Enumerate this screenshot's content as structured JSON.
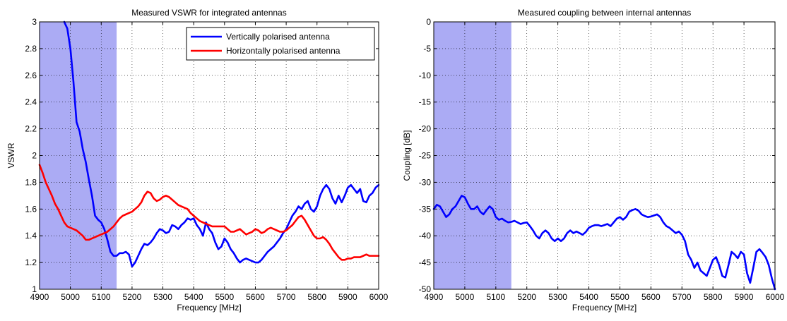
{
  "chart_data": [
    {
      "type": "line",
      "title": "Measured VSWR for integrated antennas",
      "xlabel": "Frequency [MHz]",
      "ylabel": "VSWR",
      "xlim": [
        4900,
        6000
      ],
      "ylim": [
        1,
        3
      ],
      "xticks": [
        4900,
        5000,
        5100,
        5200,
        5300,
        5400,
        5500,
        5600,
        5700,
        5800,
        5900,
        6000
      ],
      "yticks": [
        1,
        1.2,
        1.4,
        1.6,
        1.8,
        2,
        2.2,
        2.4,
        2.6,
        2.8,
        3
      ],
      "ytick_labels": [
        "1",
        "1.2",
        "1.4",
        "1.6",
        "1.8",
        "2",
        "2.2",
        "2.4",
        "2.6",
        "2.8",
        "3"
      ],
      "grid": true,
      "legend_position": "top-right",
      "shaded_band": {
        "x": [
          4900,
          5150
        ],
        "color": "#8f8ff0"
      },
      "series": [
        {
          "name": "Vertically polarised antenna",
          "color": "#0000ff",
          "x": [
            4980,
            4990,
            5000,
            5010,
            5020,
            5030,
            5040,
            5050,
            5060,
            5070,
            5080,
            5090,
            5100,
            5110,
            5120,
            5130,
            5140,
            5150,
            5160,
            5170,
            5180,
            5190,
            5200,
            5210,
            5220,
            5230,
            5240,
            5250,
            5260,
            5270,
            5280,
            5290,
            5300,
            5310,
            5320,
            5330,
            5340,
            5350,
            5360,
            5370,
            5380,
            5390,
            5400,
            5410,
            5420,
            5430,
            5440,
            5450,
            5460,
            5470,
            5480,
            5490,
            5500,
            5510,
            5520,
            5530,
            5540,
            5550,
            5560,
            5570,
            5580,
            5590,
            5600,
            5610,
            5620,
            5630,
            5640,
            5650,
            5660,
            5670,
            5680,
            5690,
            5700,
            5710,
            5720,
            5730,
            5740,
            5750,
            5760,
            5770,
            5780,
            5790,
            5800,
            5810,
            5820,
            5830,
            5840,
            5850,
            5860,
            5870,
            5880,
            5890,
            5900,
            5910,
            5920,
            5930,
            5940,
            5950,
            5960,
            5970,
            5980,
            5990,
            6000
          ],
          "values": [
            3.0,
            2.95,
            2.8,
            2.55,
            2.25,
            2.18,
            2.05,
            1.95,
            1.82,
            1.7,
            1.55,
            1.52,
            1.5,
            1.45,
            1.37,
            1.28,
            1.25,
            1.25,
            1.27,
            1.27,
            1.28,
            1.26,
            1.17,
            1.2,
            1.25,
            1.3,
            1.34,
            1.33,
            1.35,
            1.38,
            1.42,
            1.45,
            1.44,
            1.42,
            1.43,
            1.48,
            1.47,
            1.45,
            1.48,
            1.5,
            1.53,
            1.52,
            1.53,
            1.48,
            1.45,
            1.4,
            1.5,
            1.45,
            1.42,
            1.35,
            1.3,
            1.32,
            1.38,
            1.35,
            1.3,
            1.27,
            1.23,
            1.2,
            1.22,
            1.23,
            1.22,
            1.21,
            1.2,
            1.2,
            1.22,
            1.25,
            1.28,
            1.3,
            1.32,
            1.35,
            1.38,
            1.42,
            1.45,
            1.5,
            1.55,
            1.58,
            1.62,
            1.6,
            1.64,
            1.66,
            1.6,
            1.58,
            1.62,
            1.7,
            1.75,
            1.78,
            1.75,
            1.68,
            1.64,
            1.7,
            1.65,
            1.7,
            1.76,
            1.78,
            1.75,
            1.72,
            1.75,
            1.66,
            1.65,
            1.7,
            1.72,
            1.76,
            1.78
          ]
        },
        {
          "name": "Horizontally polarised antenna",
          "color": "#ff0000",
          "x": [
            4900,
            4910,
            4920,
            4930,
            4940,
            4950,
            4960,
            4970,
            4980,
            4990,
            5000,
            5010,
            5020,
            5030,
            5040,
            5050,
            5060,
            5070,
            5080,
            5090,
            5100,
            5110,
            5120,
            5130,
            5140,
            5150,
            5160,
            5170,
            5180,
            5190,
            5200,
            5210,
            5220,
            5230,
            5240,
            5250,
            5260,
            5270,
            5280,
            5290,
            5300,
            5310,
            5320,
            5330,
            5340,
            5350,
            5360,
            5370,
            5380,
            5390,
            5400,
            5410,
            5420,
            5430,
            5440,
            5450,
            5460,
            5470,
            5480,
            5490,
            5500,
            5510,
            5520,
            5530,
            5540,
            5550,
            5560,
            5570,
            5580,
            5590,
            5600,
            5610,
            5620,
            5630,
            5640,
            5650,
            5660,
            5670,
            5680,
            5690,
            5700,
            5710,
            5720,
            5730,
            5740,
            5750,
            5760,
            5770,
            5780,
            5790,
            5800,
            5810,
            5820,
            5830,
            5840,
            5850,
            5860,
            5870,
            5880,
            5890,
            5900,
            5910,
            5920,
            5930,
            5940,
            5950,
            5960,
            5970,
            5980,
            5990,
            6000
          ],
          "values": [
            1.93,
            1.87,
            1.8,
            1.75,
            1.7,
            1.64,
            1.6,
            1.55,
            1.5,
            1.47,
            1.46,
            1.45,
            1.44,
            1.42,
            1.4,
            1.37,
            1.37,
            1.38,
            1.39,
            1.4,
            1.41,
            1.42,
            1.43,
            1.45,
            1.47,
            1.5,
            1.53,
            1.55,
            1.56,
            1.57,
            1.58,
            1.6,
            1.62,
            1.65,
            1.7,
            1.73,
            1.72,
            1.68,
            1.66,
            1.67,
            1.69,
            1.7,
            1.69,
            1.67,
            1.65,
            1.63,
            1.62,
            1.61,
            1.6,
            1.57,
            1.55,
            1.53,
            1.51,
            1.5,
            1.49,
            1.48,
            1.47,
            1.47,
            1.47,
            1.47,
            1.47,
            1.45,
            1.43,
            1.43,
            1.44,
            1.45,
            1.43,
            1.41,
            1.42,
            1.43,
            1.45,
            1.44,
            1.42,
            1.43,
            1.45,
            1.46,
            1.45,
            1.44,
            1.43,
            1.43,
            1.44,
            1.46,
            1.48,
            1.51,
            1.54,
            1.55,
            1.52,
            1.48,
            1.44,
            1.4,
            1.38,
            1.38,
            1.39,
            1.37,
            1.34,
            1.3,
            1.27,
            1.24,
            1.22,
            1.22,
            1.23,
            1.23,
            1.24,
            1.24,
            1.24,
            1.25,
            1.26,
            1.25,
            1.25,
            1.25,
            1.25
          ]
        }
      ]
    },
    {
      "type": "line",
      "title": "Measured coupling between internal antennas",
      "xlabel": "Frequency [MHz]",
      "ylabel": "Coupling [dB]",
      "xlim": [
        4900,
        6000
      ],
      "ylim": [
        -50,
        0
      ],
      "xticks": [
        4900,
        5000,
        5100,
        5200,
        5300,
        5400,
        5500,
        5600,
        5700,
        5800,
        5900,
        6000
      ],
      "yticks": [
        -50,
        -45,
        -40,
        -35,
        -30,
        -25,
        -20,
        -15,
        -10,
        -5,
        0
      ],
      "ytick_labels": [
        "-50",
        "-45",
        "-40",
        "-35",
        "-30",
        "-25",
        "-20",
        "-15",
        "-10",
        "-5",
        "0"
      ],
      "grid": true,
      "shaded_band": {
        "x": [
          4900,
          5150
        ],
        "color": "#8f8ff0"
      },
      "series": [
        {
          "color": "#0000ff",
          "x": [
            4900,
            4910,
            4920,
            4930,
            4940,
            4950,
            4960,
            4970,
            4980,
            4990,
            5000,
            5010,
            5020,
            5030,
            5040,
            5050,
            5060,
            5070,
            5080,
            5090,
            5100,
            5110,
            5120,
            5130,
            5140,
            5150,
            5160,
            5170,
            5180,
            5190,
            5200,
            5210,
            5220,
            5230,
            5240,
            5250,
            5260,
            5270,
            5280,
            5290,
            5300,
            5310,
            5320,
            5330,
            5340,
            5350,
            5360,
            5370,
            5380,
            5390,
            5400,
            5410,
            5420,
            5430,
            5440,
            5450,
            5460,
            5470,
            5480,
            5490,
            5500,
            5510,
            5520,
            5530,
            5540,
            5550,
            5560,
            5570,
            5580,
            5590,
            5600,
            5610,
            5620,
            5630,
            5640,
            5650,
            5660,
            5670,
            5680,
            5690,
            5700,
            5710,
            5720,
            5730,
            5740,
            5750,
            5760,
            5770,
            5780,
            5790,
            5800,
            5810,
            5820,
            5830,
            5840,
            5850,
            5860,
            5870,
            5880,
            5890,
            5900,
            5910,
            5920,
            5930,
            5940,
            5950,
            5960,
            5970,
            5980,
            5990,
            6000
          ],
          "values": [
            -35,
            -34.2,
            -34.5,
            -35.5,
            -36.5,
            -36,
            -35,
            -34.5,
            -33.5,
            -32.5,
            -32.8,
            -34,
            -35,
            -35,
            -34.5,
            -35.5,
            -36,
            -35.2,
            -34.5,
            -35,
            -36.5,
            -37,
            -36.8,
            -37.2,
            -37.5,
            -37.4,
            -37.2,
            -37.5,
            -37.8,
            -37.6,
            -37.5,
            -38.2,
            -39,
            -40,
            -40.5,
            -39.5,
            -39,
            -39.5,
            -40.5,
            -41,
            -40.5,
            -41,
            -40.5,
            -39.5,
            -39,
            -39.5,
            -39.2,
            -39.5,
            -39.8,
            -39.3,
            -38.5,
            -38.2,
            -38,
            -38,
            -38.2,
            -38,
            -37.8,
            -38.2,
            -37.5,
            -36.8,
            -36.5,
            -37,
            -36.5,
            -35.5,
            -35.2,
            -35,
            -35.3,
            -36,
            -36.3,
            -36.5,
            -36.4,
            -36.2,
            -36,
            -36.5,
            -37.5,
            -38.2,
            -38.5,
            -39,
            -39.5,
            -39.2,
            -39.8,
            -41,
            -43.5,
            -44.5,
            -46,
            -45,
            -46.5,
            -47,
            -47.5,
            -46,
            -44.5,
            -44,
            -45.5,
            -47.5,
            -47.8,
            -45.5,
            -43,
            -43.5,
            -44.2,
            -43,
            -43.5,
            -47,
            -48.8,
            -46,
            -43,
            -42.5,
            -43.2,
            -44,
            -45.5,
            -48,
            -50
          ]
        }
      ]
    }
  ]
}
